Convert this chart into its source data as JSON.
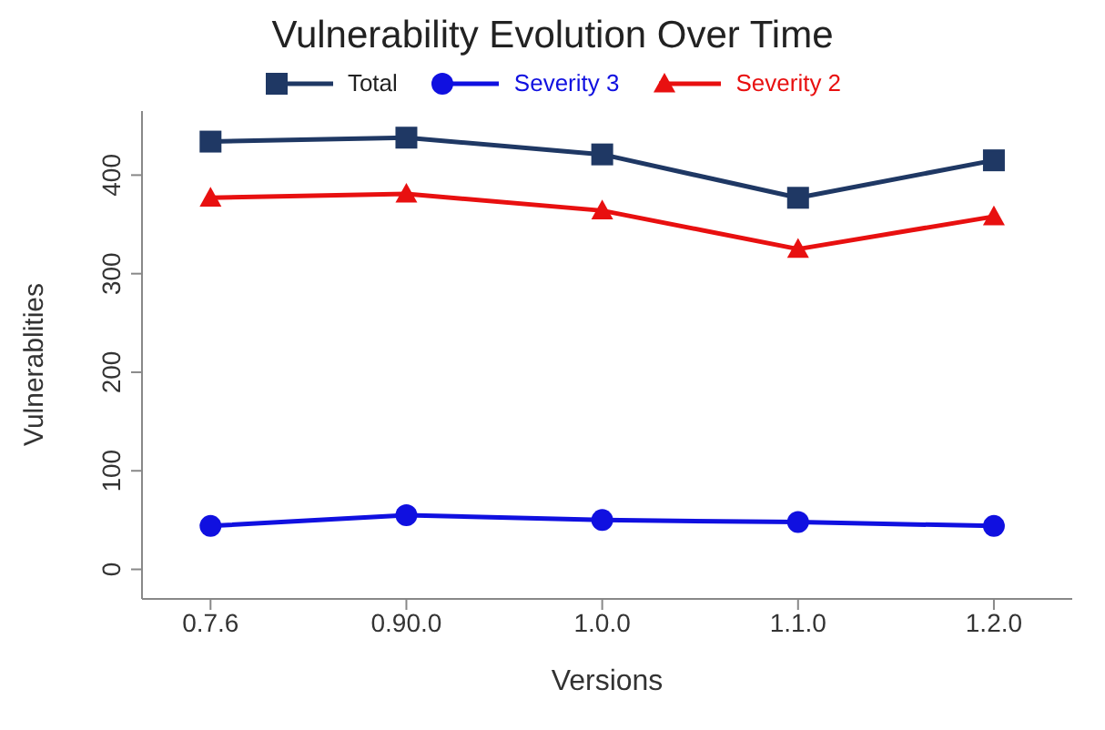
{
  "chart_data": {
    "type": "line",
    "title": "Vulnerability Evolution Over Time",
    "xlabel": "Versions",
    "ylabel": "Vulnerablities",
    "categories": [
      "0.7.6",
      "0.90.0",
      "1.0.0",
      "1.1.0",
      "1.2.0"
    ],
    "series": [
      {
        "name": "Total",
        "color": "#1f3864",
        "marker": "square",
        "values": [
          434,
          438,
          421,
          377,
          415
        ]
      },
      {
        "name": "Severity 3",
        "color": "#1010e0",
        "marker": "circle",
        "values": [
          44,
          55,
          50,
          48,
          44
        ]
      },
      {
        "name": "Severity 2",
        "color": "#e81010",
        "marker": "triangle",
        "values": [
          377,
          381,
          364,
          325,
          358
        ]
      }
    ],
    "ylim": [
      -30,
      465
    ],
    "yticks": [
      0,
      100,
      200,
      300,
      400
    ],
    "grid": false,
    "legend": "top",
    "line_style": "solid"
  }
}
